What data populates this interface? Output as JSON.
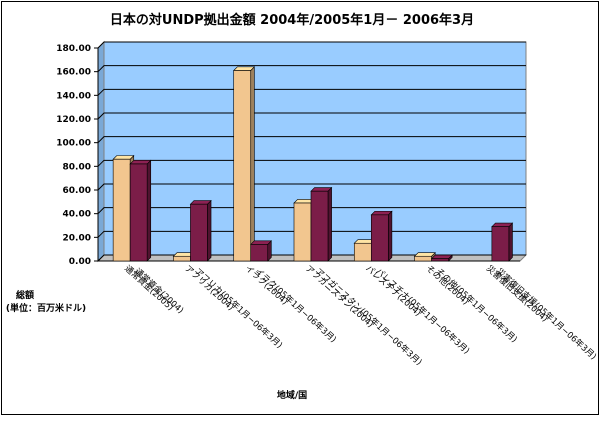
{
  "chart_data": {
    "type": "bar",
    "title": "日本の対UNDP拠出金額 2004年/2005年1月－ 2006年3月",
    "ylabel_line1": "総額",
    "ylabel_line2": "(単位：百万米ドル)",
    "xlabel": "地域/国",
    "ylim": [
      0,
      180
    ],
    "yticks": [
      "0.00",
      "20.00",
      "40.00",
      "60.00",
      "80.00",
      "100.00",
      "120.00",
      "140.00",
      "160.00",
      "180.00"
    ],
    "groups": [
      {
        "labels": [
          "通常資金(2005)",
          "通常資金(2004)"
        ],
        "values": [
          86,
          82
        ]
      },
      {
        "labels": [
          "アフリカ(2004)",
          "アフリカ(05年1月−06年3月)"
        ],
        "values": [
          4,
          48
        ]
      },
      {
        "labels": [
          "イラク(2004)",
          "イラク(05年1月−06年3月)"
        ],
        "values": [
          161,
          14
        ]
      },
      {
        "labels": [
          "アフガニスタン(2004)",
          "アフガニスタン(05年1月−06年3月)"
        ],
        "values": [
          49,
          59
        ]
      },
      {
        "labels": [
          "パレスチナ(2004)",
          "パレスチナ(05年1月−06年3月)"
        ],
        "values": [
          15,
          39
        ]
      },
      {
        "labels": [
          "その他(2004)",
          "その他(05年1月−06年3月)"
        ],
        "values": [
          4,
          2
        ]
      },
      {
        "labels": [
          "災害復旧支援(2004)",
          "災害復旧支援(05年1月−06年3月)"
        ],
        "values": [
          0,
          29
        ]
      }
    ],
    "colors": {
      "plot_bg": "#99ccff",
      "series_a": "#f2c68f",
      "series_b": "#7b1d48",
      "grid": "#000000"
    }
  }
}
